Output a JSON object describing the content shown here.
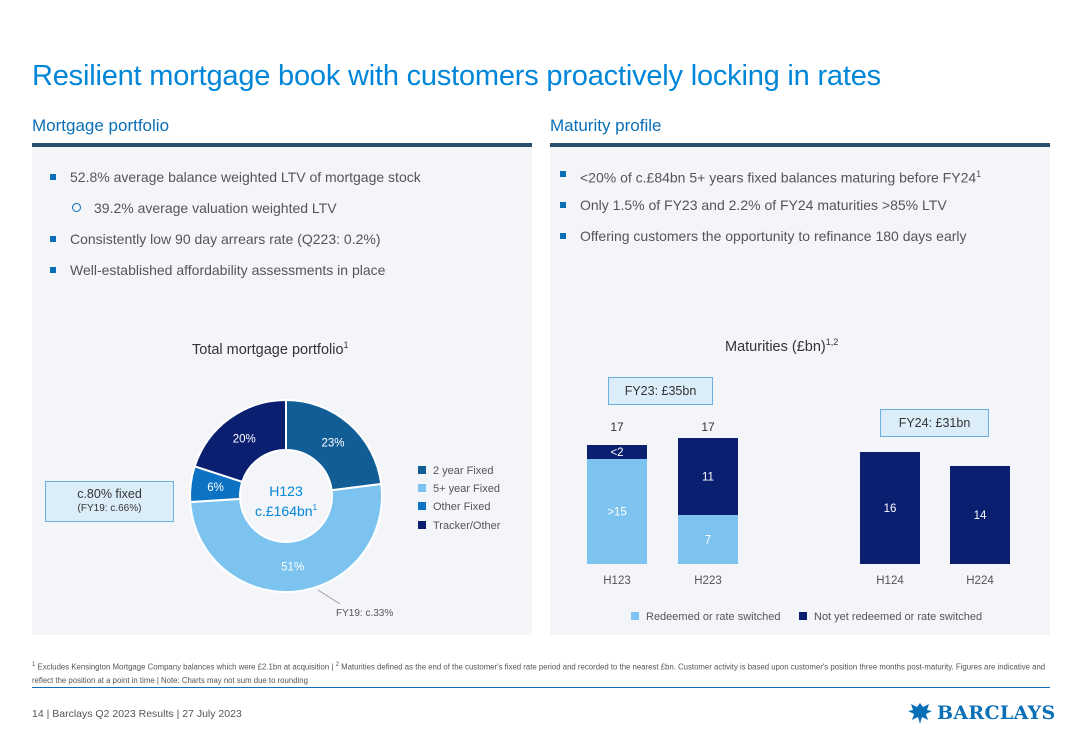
{
  "title": "Resilient mortgage book with customers proactively locking in rates",
  "left_panel": {
    "heading": "Mortgage portfolio",
    "bullets": [
      {
        "text": "52.8% average balance weighted LTV of mortgage stock",
        "level": 1
      },
      {
        "text": "39.2% average valuation weighted LTV",
        "level": 2
      },
      {
        "text": "Consistently low 90 day arrears rate (Q223: 0.2%)",
        "level": 1
      },
      {
        "text": "Well-established affordability assessments in place",
        "level": 1
      }
    ]
  },
  "right_panel": {
    "heading": "Maturity profile",
    "bullets": [
      {
        "text": "<20% of c.£84bn 5+ years fixed balances maturing before FY24",
        "sup": "1"
      },
      {
        "text": "Only 1.5% of FY23 and 2.2% of FY24 maturities >85% LTV",
        "sup": ""
      },
      {
        "text": "Offering customers the opportunity to refinance 180 days early",
        "sup": ""
      }
    ]
  },
  "chart_data": [
    {
      "type": "pie",
      "title": "Total mortgage portfolio",
      "title_sup": "1",
      "center_label_line1": "H123",
      "center_label_line2": "c.£164bn",
      "center_sup": "1",
      "categories": [
        "2 year Fixed",
        "5+ year Fixed",
        "Other Fixed",
        "Tracker/Other"
      ],
      "values": [
        23,
        51,
        6,
        20
      ],
      "value_labels": [
        "23%",
        "51%",
        "6%",
        "20%"
      ],
      "colors": [
        "#115d96",
        "#7cc4ef",
        "#0c72c4",
        "#0b1f70"
      ],
      "legend_placement": "right",
      "annotations": {
        "fixed_callout_line1": "c.80% fixed",
        "fixed_callout_line2": "(FY19: c.66%)",
        "five_year_note": "FY19: c.33%"
      }
    },
    {
      "type": "bar",
      "stacked": true,
      "title": "Maturities (£bn)",
      "title_sup": "1,2",
      "categories": [
        "H123",
        "H223",
        "H124",
        "H224"
      ],
      "series": [
        {
          "name": "Redeemed or rate switched",
          "values": [
            15,
            7,
            0,
            0
          ],
          "labels": [
            ">15",
            "7",
            "",
            ""
          ],
          "color": "#7cc4ef"
        },
        {
          "name": "Not yet redeemed or rate switched",
          "values": [
            2,
            11,
            16,
            14
          ],
          "labels": [
            "<2",
            "11",
            "16",
            "14"
          ],
          "color": "#0b1f70"
        }
      ],
      "total_labels": [
        "17",
        "17",
        "",
        ""
      ],
      "ylim": [
        0,
        18
      ],
      "legend_placement": "bottom",
      "annotations": {
        "fy23": "FY23: £35bn",
        "fy24": "FY24: £31bn"
      }
    }
  ],
  "footnote": {
    "part1": "Excludes Kensington Mortgage Company balances which were £2.1bn at acquisition",
    "part2": "Maturities defined as the end of the customer's fixed rate period and recorded to the nearest £bn. Customer activity is based upon customer's position three months post-maturity. Figures are indicative and reflect the position at a point in time",
    "part3": "Note: Charts may not sum due to rounding"
  },
  "footer": {
    "page": "14",
    "deck": "Barclays Q2 2023 Results",
    "date": "27 July 2023"
  },
  "logo_text": "BARCLAYS"
}
